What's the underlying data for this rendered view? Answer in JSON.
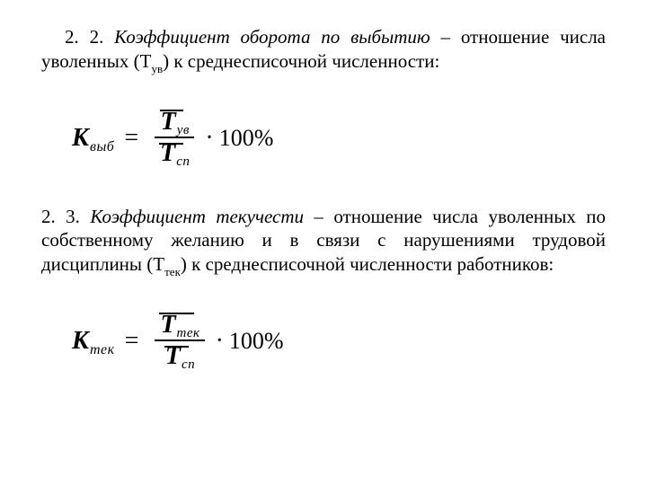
{
  "sec22": {
    "num": "2. 2.",
    "title": "Коэффициент оборота по выбытию",
    "rest": " – отношение числа уволенных (Т",
    "sub": "ув",
    "rest2": ") к среднесписочной численности:"
  },
  "f1": {
    "K": "К",
    "Ksub": "выб",
    "T": "Т",
    "numsub": "ув",
    "Tden": "Т",
    "densub": "сп",
    "eq": "=",
    "dot": "·",
    "hundred": "100%"
  },
  "sec23": {
    "num": "2. 3.",
    "title": "Коэффициент текучести",
    "rest": " – отношение числа уволенных по собственному желанию и в связи с нарушениями трудовой дисциплины (Т",
    "sub": "тек",
    "rest2": ") к среднесписочной численности работников:"
  },
  "f2": {
    "K": "К",
    "Ksub": "тек",
    "T": "Т",
    "numsub": "тек",
    "Tden": "Т",
    "densub": "сп",
    "eq": "=",
    "dot": "·",
    "hundred": "100%"
  }
}
